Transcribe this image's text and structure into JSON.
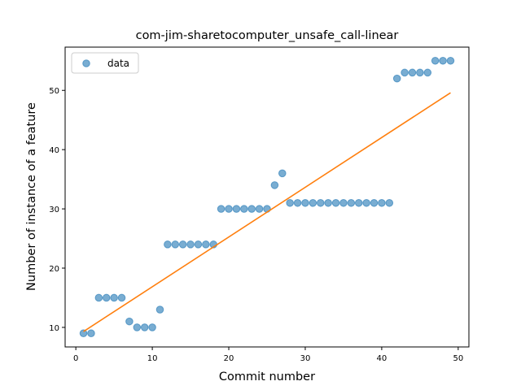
{
  "chart_data": {
    "type": "scatter",
    "title": "com-jim-sharetocomputer_unsafe_call-linear",
    "xlabel": "Commit number",
    "ylabel": "Number of instance of a feature",
    "xlim": [
      -1.4,
      51.4
    ],
    "ylim": [
      6.7,
      57.3
    ],
    "xticks": [
      0,
      10,
      20,
      30,
      40,
      50
    ],
    "yticks": [
      10,
      20,
      30,
      40,
      50
    ],
    "grid": false,
    "legend_position": "top-left",
    "series": [
      {
        "name": "data",
        "kind": "scatter",
        "color": "#1f77b4",
        "x": [
          1,
          2,
          3,
          4,
          5,
          6,
          7,
          8,
          9,
          10,
          11,
          12,
          13,
          14,
          15,
          16,
          17,
          18,
          19,
          20,
          21,
          22,
          23,
          24,
          25,
          26,
          27,
          28,
          29,
          30,
          31,
          32,
          33,
          34,
          35,
          36,
          37,
          38,
          39,
          40,
          41,
          42,
          43,
          44,
          45,
          46,
          47,
          48,
          49
        ],
        "y": [
          9,
          9,
          15,
          15,
          15,
          15,
          11,
          10,
          10,
          10,
          13,
          24,
          24,
          24,
          24,
          24,
          24,
          24,
          30,
          30,
          30,
          30,
          30,
          30,
          30,
          34,
          36,
          31,
          31,
          31,
          31,
          31,
          31,
          31,
          31,
          31,
          31,
          31,
          31,
          31,
          31,
          52,
          53,
          53,
          53,
          53,
          55,
          55,
          55
        ]
      },
      {
        "kind": "line",
        "color": "#ff7f0e",
        "x": [
          1,
          49
        ],
        "y": [
          9.3,
          49.6
        ]
      }
    ]
  }
}
